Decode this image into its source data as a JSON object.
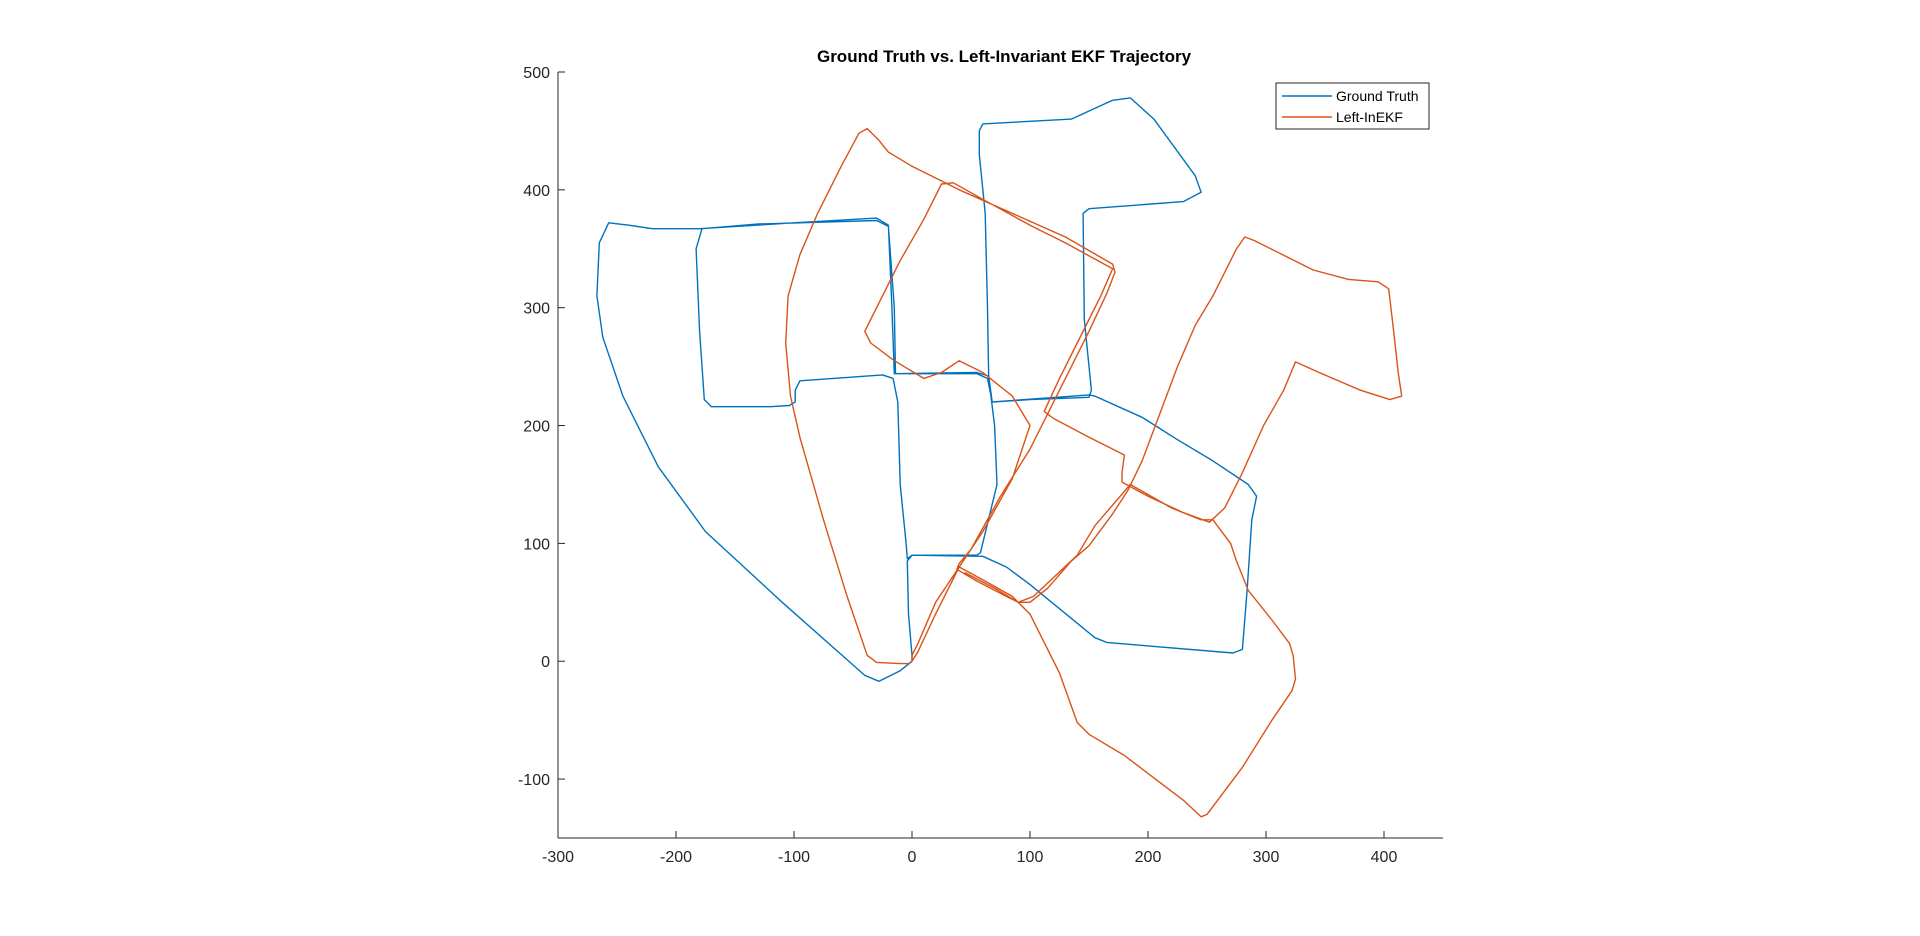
{
  "chart_data": {
    "type": "line",
    "title": "Ground Truth vs. Left-Invariant EKF Trajectory",
    "xlabel": "",
    "ylabel": "",
    "xlim": [
      -300,
      450
    ],
    "ylim": [
      -150,
      500
    ],
    "x_ticks": [
      -300,
      -200,
      -100,
      0,
      100,
      200,
      300,
      400
    ],
    "y_ticks": [
      -100,
      0,
      100,
      200,
      300,
      400,
      500
    ],
    "x_tick_labels": [
      "-300",
      "-200",
      "-100",
      "0",
      "100",
      "200",
      "300",
      "400"
    ],
    "y_tick_labels": [
      "-100",
      "0",
      "100",
      "200",
      "300",
      "400",
      "500"
    ],
    "grid": false,
    "axis_box": "left-bottom only",
    "legend_position": "top-right",
    "series": [
      {
        "name": "Ground Truth",
        "color": "#0072BD",
        "points": [
          [
            0,
            0
          ],
          [
            -10,
            -8
          ],
          [
            -28,
            -17
          ],
          [
            -40,
            -12
          ],
          [
            -110,
            50
          ],
          [
            -175,
            110
          ],
          [
            -215,
            165
          ],
          [
            -245,
            225
          ],
          [
            -262,
            275
          ],
          [
            -267,
            310
          ],
          [
            -265,
            355
          ],
          [
            -257,
            372
          ],
          [
            -240,
            370
          ],
          [
            -220,
            367
          ],
          [
            -180,
            367
          ],
          [
            -100,
            372
          ],
          [
            -30,
            376
          ],
          [
            -20,
            370
          ],
          [
            -17,
            300
          ],
          [
            -15,
            244
          ],
          [
            55,
            245
          ],
          [
            65,
            242
          ],
          [
            68,
            220
          ],
          [
            100,
            222
          ],
          [
            150,
            224
          ],
          [
            152,
            230
          ],
          [
            146,
            290
          ],
          [
            145,
            380
          ],
          [
            150,
            384
          ],
          [
            230,
            390
          ],
          [
            245,
            398
          ],
          [
            240,
            412
          ],
          [
            205,
            460
          ],
          [
            185,
            478
          ],
          [
            170,
            476
          ],
          [
            135,
            460
          ],
          [
            60,
            456
          ],
          [
            57,
            450
          ],
          [
            57,
            430
          ],
          [
            62,
            380
          ],
          [
            64,
            300
          ],
          [
            65,
            240
          ],
          [
            70,
            200
          ],
          [
            72,
            150
          ],
          [
            58,
            92
          ],
          [
            55,
            90
          ],
          [
            0,
            90
          ],
          [
            -4,
            87
          ],
          [
            -5,
            100
          ],
          [
            -10,
            150
          ],
          [
            -12,
            220
          ],
          [
            -16,
            240
          ],
          [
            -25,
            243
          ],
          [
            -95,
            238
          ],
          [
            -99,
            230
          ],
          [
            -99,
            220
          ],
          [
            -104,
            217
          ],
          [
            -120,
            216
          ],
          [
            -170,
            216
          ],
          [
            -176,
            222
          ],
          [
            -180,
            280
          ],
          [
            -183,
            350
          ],
          [
            -178,
            367
          ],
          [
            -130,
            371
          ],
          [
            -30,
            374
          ],
          [
            -20,
            369
          ],
          [
            -15,
            300
          ],
          [
            -14,
            244
          ],
          [
            55,
            244
          ],
          [
            64,
            240
          ],
          [
            68,
            220
          ],
          [
            150,
            226
          ],
          [
            155,
            225
          ],
          [
            195,
            207
          ],
          [
            225,
            188
          ],
          [
            255,
            170
          ],
          [
            285,
            150
          ],
          [
            292,
            140
          ],
          [
            288,
            120
          ],
          [
            284,
            60
          ],
          [
            280,
            10
          ],
          [
            272,
            7
          ],
          [
            200,
            13
          ],
          [
            165,
            16
          ],
          [
            155,
            20
          ],
          [
            100,
            65
          ],
          [
            80,
            80
          ],
          [
            60,
            89
          ],
          [
            0,
            90
          ],
          [
            -4,
            85
          ],
          [
            -3,
            40
          ],
          [
            0,
            5
          ],
          [
            0,
            0
          ]
        ]
      },
      {
        "name": "Left-InEKF",
        "color": "#D95319",
        "points": [
          [
            -2,
            -2
          ],
          [
            -10,
            -2
          ],
          [
            -30,
            -1
          ],
          [
            -38,
            5
          ],
          [
            -55,
            55
          ],
          [
            -75,
            120
          ],
          [
            -95,
            190
          ],
          [
            -103,
            225
          ],
          [
            -107,
            270
          ],
          [
            -105,
            310
          ],
          [
            -95,
            345
          ],
          [
            -80,
            380
          ],
          [
            -60,
            420
          ],
          [
            -45,
            448
          ],
          [
            -38,
            452
          ],
          [
            -28,
            442
          ],
          [
            -20,
            432
          ],
          [
            0,
            420
          ],
          [
            40,
            400
          ],
          [
            85,
            380
          ],
          [
            130,
            360
          ],
          [
            170,
            337
          ],
          [
            172,
            330
          ],
          [
            165,
            312
          ],
          [
            150,
            280
          ],
          [
            130,
            240
          ],
          [
            115,
            210
          ],
          [
            100,
            180
          ],
          [
            75,
            140
          ],
          [
            50,
            95
          ],
          [
            40,
            83
          ],
          [
            38,
            78
          ],
          [
            55,
            68
          ],
          [
            80,
            55
          ],
          [
            90,
            50
          ],
          [
            103,
            55
          ],
          [
            140,
            90
          ],
          [
            155,
            115
          ],
          [
            185,
            150
          ],
          [
            220,
            130
          ],
          [
            245,
            120
          ],
          [
            255,
            120
          ],
          [
            270,
            100
          ],
          [
            275,
            85
          ],
          [
            285,
            60
          ],
          [
            305,
            35
          ],
          [
            320,
            15
          ],
          [
            323,
            5
          ],
          [
            325,
            -15
          ],
          [
            322,
            -25
          ],
          [
            305,
            -50
          ],
          [
            280,
            -90
          ],
          [
            250,
            -130
          ],
          [
            245,
            -132
          ],
          [
            230,
            -118
          ],
          [
            180,
            -80
          ],
          [
            150,
            -62
          ],
          [
            140,
            -52
          ],
          [
            125,
            -10
          ],
          [
            110,
            20
          ],
          [
            100,
            40
          ],
          [
            85,
            55
          ],
          [
            62,
            68
          ],
          [
            40,
            80
          ],
          [
            20,
            50
          ],
          [
            5,
            15
          ],
          [
            0,
            5
          ],
          [
            0,
            0
          ],
          [
            5,
            8
          ],
          [
            20,
            40
          ],
          [
            40,
            80
          ],
          [
            60,
            110
          ],
          [
            85,
            155
          ],
          [
            100,
            200
          ],
          [
            85,
            225
          ],
          [
            60,
            245
          ],
          [
            40,
            255
          ],
          [
            25,
            245
          ],
          [
            10,
            240
          ],
          [
            -15,
            255
          ],
          [
            -35,
            270
          ],
          [
            -40,
            280
          ],
          [
            -35,
            290
          ],
          [
            -25,
            310
          ],
          [
            -10,
            340
          ],
          [
            10,
            375
          ],
          [
            25,
            405
          ],
          [
            35,
            406
          ],
          [
            60,
            392
          ],
          [
            100,
            370
          ],
          [
            130,
            355
          ],
          [
            170,
            333
          ],
          [
            160,
            310
          ],
          [
            140,
            270
          ],
          [
            125,
            240
          ],
          [
            112,
            212
          ],
          [
            120,
            206
          ],
          [
            150,
            190
          ],
          [
            180,
            175
          ],
          [
            178,
            160
          ],
          [
            178,
            152
          ],
          [
            200,
            140
          ],
          [
            230,
            126
          ],
          [
            252,
            118
          ],
          [
            265,
            130
          ],
          [
            280,
            160
          ],
          [
            298,
            200
          ],
          [
            315,
            230
          ],
          [
            325,
            254
          ],
          [
            345,
            245
          ],
          [
            380,
            230
          ],
          [
            405,
            222
          ],
          [
            415,
            225
          ],
          [
            412,
            245
          ],
          [
            408,
            282
          ],
          [
            404,
            316
          ],
          [
            395,
            322
          ],
          [
            370,
            324
          ],
          [
            340,
            332
          ],
          [
            290,
            357
          ],
          [
            282,
            360
          ],
          [
            275,
            350
          ],
          [
            255,
            310
          ],
          [
            240,
            285
          ],
          [
            225,
            250
          ],
          [
            210,
            210
          ],
          [
            195,
            170
          ],
          [
            183,
            145
          ],
          [
            170,
            125
          ],
          [
            150,
            98
          ],
          [
            135,
            85
          ],
          [
            115,
            62
          ],
          [
            100,
            50
          ],
          [
            90,
            50
          ],
          [
            70,
            62
          ],
          [
            45,
            75
          ]
        ]
      }
    ]
  }
}
